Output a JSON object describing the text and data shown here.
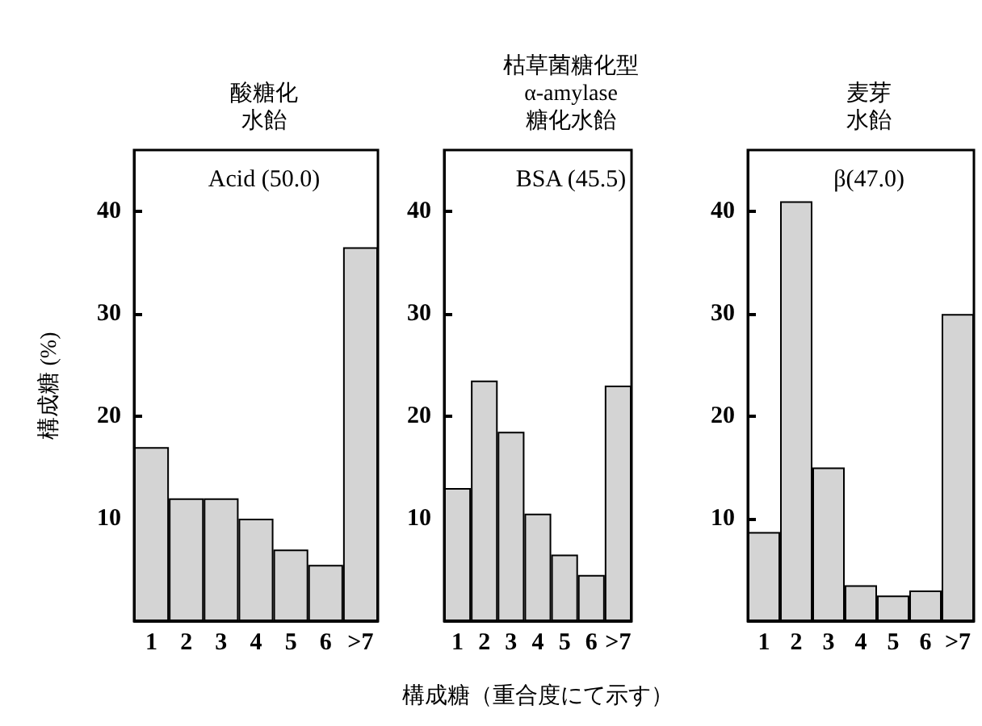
{
  "chart_data": [
    {
      "type": "bar",
      "title": "酸糖化水飴",
      "subtitle": "Acid (50.0)",
      "ylabel": "構成糖 (%)",
      "categories": [
        "1",
        "2",
        "3",
        "4",
        "5",
        "6",
        ">7"
      ],
      "values": [
        17,
        12,
        12,
        10,
        7,
        5.5,
        36.5
      ],
      "color": "#d4d4d4",
      "ylim": [
        0,
        46
      ],
      "yticks": [
        10,
        20,
        30,
        40
      ],
      "grid": false
    },
    {
      "type": "bar",
      "title": "枯草菌糖化型\nα-amylase\n糖化水飴",
      "subtitle": "BSA (45.5)",
      "xlabel": "構成糖（重合度にて示す）",
      "categories": [
        "1",
        "2",
        "3",
        "4",
        "5",
        "6",
        ">7"
      ],
      "values": [
        13,
        23.5,
        18.5,
        10.5,
        6.5,
        4.5,
        23
      ],
      "color": "#d4d4d4",
      "ylim": [
        0,
        46
      ],
      "yticks": [
        10,
        20,
        30,
        40
      ],
      "grid": false
    },
    {
      "type": "bar",
      "title": "麦芽水飴",
      "subtitle": "β(47.0)",
      "categories": [
        "1",
        "2",
        "3",
        "4",
        "5",
        "6",
        ">7"
      ],
      "values": [
        8.7,
        41,
        15,
        3.5,
        2.5,
        3,
        30
      ],
      "color": "#d4d4d4",
      "ylim": [
        0,
        46
      ],
      "yticks": [
        10,
        20,
        30,
        40
      ],
      "grid": false
    }
  ]
}
